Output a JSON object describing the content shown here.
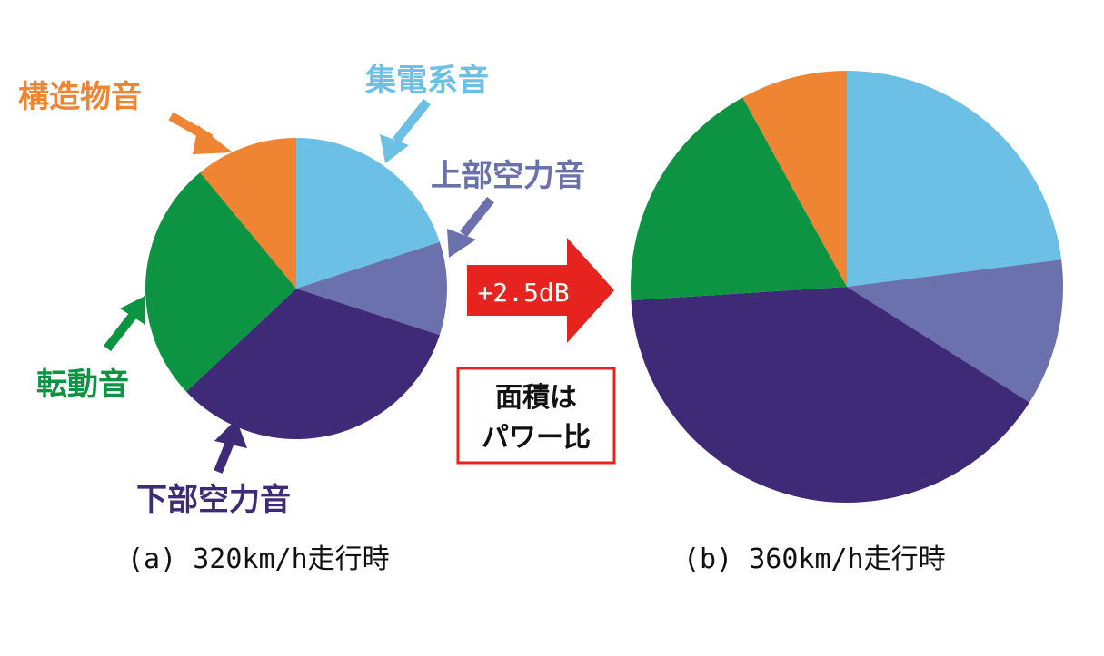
{
  "chart_data": [
    {
      "type": "pie",
      "caption": "(a) 320km/h走行時",
      "start_angle_deg": 0,
      "direction": "clockwise",
      "slices": [
        {
          "label": "集電系音",
          "value": 20
        },
        {
          "label": "上部空力音",
          "value": 10
        },
        {
          "label": "下部空力音",
          "value": 33
        },
        {
          "label": "転動音",
          "value": 26
        },
        {
          "label": "構造物音",
          "value": 11
        }
      ]
    },
    {
      "type": "pie",
      "caption": "(b) 360km/h走行時",
      "start_angle_deg": 0,
      "direction": "clockwise",
      "slices": [
        {
          "label": "集電系音",
          "value": 23
        },
        {
          "label": "上部空力音",
          "value": 11
        },
        {
          "label": "下部空力音",
          "value": 40
        },
        {
          "label": "転動音",
          "value": 18
        },
        {
          "label": "構造物音",
          "value": 8
        }
      ]
    }
  ],
  "colors": {
    "集電系音": "#6cc0e6",
    "上部空力音": "#6a71ad",
    "下部空力音": "#3f2a78",
    "転動音": "#0c9442",
    "構造物音": "#ef8532"
  },
  "increase_label": "+2.5dB",
  "note_lines": [
    "面積は",
    "パワー比"
  ],
  "arrow_color": "#e6231f",
  "note_border_color": "#e6231f"
}
